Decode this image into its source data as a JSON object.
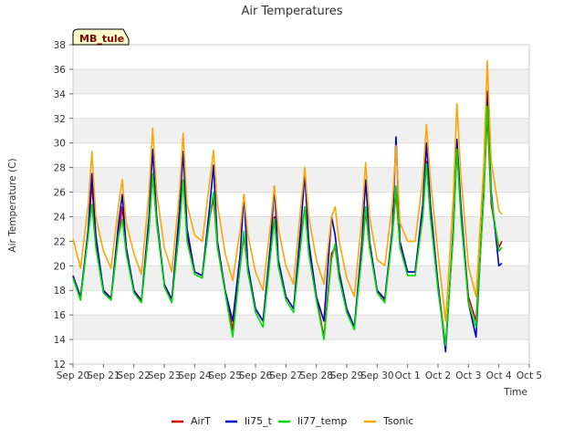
{
  "chart_data": {
    "type": "line",
    "title": "Air Temperatures",
    "xlabel": "Time",
    "ylabel": "Air Temperature (C)",
    "site_label": "MB_tule",
    "ylim": [
      12,
      38
    ],
    "yticks": [
      12,
      14,
      16,
      18,
      20,
      22,
      24,
      26,
      28,
      30,
      32,
      34,
      36,
      38
    ],
    "xlim": [
      "Sep 20",
      "Oct 5"
    ],
    "xtick_labels": [
      "Sep 20",
      "Sep 21",
      "Sep 22",
      "Sep 23",
      "Sep 24",
      "Sep 25",
      "Sep 26",
      "Sep 27",
      "Sep 28",
      "Sep 29",
      "Sep 30",
      "Oct 1",
      "Oct 2",
      "Oct 3",
      "Oct 4",
      "Oct 5"
    ],
    "grid": true,
    "legend_position": "bottom",
    "colors": {
      "AirT": "#cc0000",
      "li75_t": "#0000cc",
      "li77_temp": "#00dd00",
      "Tsonic": "#ffa500",
      "band": "#f0f0f0",
      "site_bg": "#ffffcc"
    },
    "series": [
      {
        "name": "AirT",
        "x": [
          "Sep 20",
          "Sep 20.25",
          "Sep 20.5",
          "Sep 20.62",
          "Sep 20.75",
          "Sep 21",
          "Sep 21.25",
          "Sep 21.5",
          "Sep 21.62",
          "Sep 21.75",
          "Sep 22",
          "Sep 22.25",
          "Sep 22.5",
          "Sep 22.62",
          "Sep 22.75",
          "Sep 23",
          "Sep 23.25",
          "Sep 23.5",
          "Sep 23.62",
          "Sep 23.75",
          "Sep 24",
          "Sep 24.25",
          "Sep 24.5",
          "Sep 24.62",
          "Sep 24.75",
          "Sep 25",
          "Sep 25.25",
          "Sep 25.5",
          "Sep 25.62",
          "Sep 25.75",
          "Sep 26",
          "Sep 26.25",
          "Sep 26.5",
          "Sep 26.62",
          "Sep 26.75",
          "Sep 27",
          "Sep 27.25",
          "Sep 27.5",
          "Sep 27.62",
          "Sep 27.75",
          "Sep 28",
          "Sep 28.25",
          "Sep 28.5",
          "Sep 28.62",
          "Sep 28.75",
          "Sep 29",
          "Sep 29.25",
          "Sep 29.5",
          "Sep 29.62",
          "Sep 29.75",
          "Sep 30",
          "Sep 30.25",
          "Sep 30.5",
          "Sep 30.62",
          "Sep 30.75",
          "Oct 1",
          "Oct 1.25",
          "Oct 1.5",
          "Oct 1.62",
          "Oct 1.75",
          "Oct 2",
          "Oct 2.25",
          "Oct 2.5",
          "Oct 2.62",
          "Oct 2.75",
          "Oct 3",
          "Oct 3.25",
          "Oct 3.5",
          "Oct 3.62",
          "Oct 3.75",
          "Oct 4",
          "Oct 4.1"
        ],
        "y": [
          19.2,
          17.5,
          22.5,
          26.8,
          22,
          18,
          17.4,
          22.5,
          24.8,
          21.5,
          18,
          17.2,
          23,
          27.5,
          23.5,
          18.5,
          17.3,
          23.5,
          27,
          22.5,
          19.5,
          19.2,
          24,
          25.5,
          21.5,
          18,
          14.8,
          20,
          22.5,
          19.5,
          16.5,
          15.5,
          21.5,
          24,
          20,
          17.5,
          16.5,
          22.5,
          24.8,
          21.5,
          17.5,
          14.2,
          21,
          21.5,
          19,
          16.5,
          15,
          21,
          24.5,
          21.5,
          18,
          17.2,
          22.5,
          26,
          21.5,
          19.5,
          19.5,
          24,
          28.5,
          24,
          18.5,
          13.5,
          22.5,
          29.5,
          24.5,
          17.5,
          15.5,
          25.5,
          32.5,
          25,
          21.5,
          22
        ]
      },
      {
        "name": "li75_t",
        "x": [
          "Sep 20",
          "Sep 20.25",
          "Sep 20.5",
          "Sep 20.62",
          "Sep 20.75",
          "Sep 21",
          "Sep 21.25",
          "Sep 21.5",
          "Sep 21.62",
          "Sep 21.75",
          "Sep 22",
          "Sep 22.25",
          "Sep 22.5",
          "Sep 22.62",
          "Sep 22.75",
          "Sep 23",
          "Sep 23.25",
          "Sep 23.5",
          "Sep 23.62",
          "Sep 23.75",
          "Sep 24",
          "Sep 24.25",
          "Sep 24.5",
          "Sep 24.62",
          "Sep 24.75",
          "Sep 25",
          "Sep 25.25",
          "Sep 25.5",
          "Sep 25.62",
          "Sep 25.75",
          "Sep 26",
          "Sep 26.25",
          "Sep 26.5",
          "Sep 26.62",
          "Sep 26.75",
          "Sep 27",
          "Sep 27.25",
          "Sep 27.5",
          "Sep 27.62",
          "Sep 27.75",
          "Sep 28",
          "Sep 28.25",
          "Sep 28.5",
          "Sep 28.62",
          "Sep 28.75",
          "Sep 29",
          "Sep 29.25",
          "Sep 29.5",
          "Sep 29.62",
          "Sep 29.75",
          "Sep 30",
          "Sep 30.25",
          "Sep 30.5",
          "Sep 30.62",
          "Sep 30.75",
          "Oct 1",
          "Oct 1.25",
          "Oct 1.5",
          "Oct 1.62",
          "Oct 1.75",
          "Oct 2",
          "Oct 2.25",
          "Oct 2.5",
          "Oct 2.62",
          "Oct 2.75",
          "Oct 3",
          "Oct 3.25",
          "Oct 3.5",
          "Oct 3.62",
          "Oct 3.75",
          "Oct 4",
          "Oct 4.1"
        ],
        "y": [
          19.2,
          17.4,
          23,
          27.5,
          22.5,
          18,
          17.3,
          23.5,
          25.8,
          21.5,
          18,
          17.1,
          24,
          29.5,
          24,
          18.5,
          17.2,
          24.5,
          29.3,
          23,
          19.5,
          19.2,
          25,
          28.2,
          22,
          18,
          15.5,
          21,
          25.8,
          20,
          16.5,
          15.5,
          22,
          26.5,
          20.5,
          17.5,
          16.5,
          23.5,
          27.5,
          22,
          17.5,
          15.5,
          24,
          22.5,
          19.5,
          16.5,
          15,
          22,
          27,
          22,
          18,
          17.3,
          23,
          30.5,
          22,
          19.5,
          19.5,
          25,
          30,
          25,
          18.5,
          13,
          23,
          30.3,
          25,
          17,
          14.2,
          26,
          34.2,
          26,
          20,
          20.2
        ]
      },
      {
        "name": "li77_temp",
        "x": [
          "Sep 20",
          "Sep 20.25",
          "Sep 20.5",
          "Sep 20.62",
          "Sep 20.75",
          "Sep 21",
          "Sep 21.25",
          "Sep 21.5",
          "Sep 21.62",
          "Sep 21.75",
          "Sep 22",
          "Sep 22.25",
          "Sep 22.5",
          "Sep 22.62",
          "Sep 22.75",
          "Sep 23",
          "Sep 23.25",
          "Sep 23.5",
          "Sep 23.62",
          "Sep 23.75",
          "Sep 24",
          "Sep 24.25",
          "Sep 24.5",
          "Sep 24.62",
          "Sep 24.75",
          "Sep 25",
          "Sep 25.25",
          "Sep 25.5",
          "Sep 25.62",
          "Sep 25.75",
          "Sep 26",
          "Sep 26.25",
          "Sep 26.5",
          "Sep 26.62",
          "Sep 26.75",
          "Sep 27",
          "Sep 27.25",
          "Sep 27.5",
          "Sep 27.62",
          "Sep 27.75",
          "Sep 28",
          "Sep 28.25",
          "Sep 28.5",
          "Sep 28.62",
          "Sep 28.75",
          "Sep 29",
          "Sep 29.25",
          "Sep 29.5",
          "Sep 29.62",
          "Sep 29.75",
          "Sep 30",
          "Sep 30.25",
          "Sep 30.5",
          "Sep 30.62",
          "Sep 30.75",
          "Oct 1",
          "Oct 1.25",
          "Oct 1.5",
          "Oct 1.62",
          "Oct 1.75",
          "Oct 2",
          "Oct 2.25",
          "Oct 2.5",
          "Oct 2.62",
          "Oct 2.75",
          "Oct 3",
          "Oct 3.25",
          "Oct 3.5",
          "Oct 3.62",
          "Oct 3.75",
          "Oct 4",
          "Oct 4.1"
        ],
        "y": [
          19,
          17.2,
          22.5,
          25,
          21.5,
          17.8,
          17.2,
          22.5,
          23.8,
          21,
          17.8,
          17,
          23,
          27.5,
          23.5,
          18.3,
          17,
          23,
          27,
          22,
          19.3,
          19,
          24,
          26,
          21.5,
          17.8,
          14.2,
          20,
          22.8,
          19.5,
          16.2,
          15,
          21,
          23.8,
          20,
          17.2,
          16.2,
          22,
          24.8,
          21,
          17.2,
          14,
          20.5,
          21.8,
          19,
          16.2,
          14.8,
          21,
          24.8,
          21.5,
          17.8,
          17,
          22.5,
          26.5,
          21.5,
          19.2,
          19.2,
          24,
          28.3,
          24,
          18,
          13.5,
          22.5,
          29.5,
          24,
          17,
          15,
          25.5,
          33,
          25.5,
          21.2,
          21.5
        ]
      },
      {
        "name": "Tsonic",
        "x": [
          "Sep 20",
          "Sep 20.25",
          "Sep 20.5",
          "Sep 20.62",
          "Sep 20.75",
          "Sep 21",
          "Sep 21.25",
          "Sep 21.5",
          "Sep 21.62",
          "Sep 21.75",
          "Sep 22",
          "Sep 22.25",
          "Sep 22.5",
          "Sep 22.62",
          "Sep 22.75",
          "Sep 23",
          "Sep 23.25",
          "Sep 23.5",
          "Sep 23.62",
          "Sep 23.75",
          "Sep 24",
          "Sep 24.25",
          "Sep 24.5",
          "Sep 24.62",
          "Sep 24.75",
          "Sep 25",
          "Sep 25.25",
          "Sep 25.5",
          "Sep 25.62",
          "Sep 25.75",
          "Sep 26",
          "Sep 26.25",
          "Sep 26.5",
          "Sep 26.62",
          "Sep 26.75",
          "Sep 27",
          "Sep 27.25",
          "Sep 27.5",
          "Sep 27.62",
          "Sep 27.75",
          "Sep 28",
          "Sep 28.25",
          "Sep 28.5",
          "Sep 28.62",
          "Sep 28.75",
          "Sep 29",
          "Sep 29.25",
          "Sep 29.5",
          "Sep 29.62",
          "Sep 29.75",
          "Sep 30",
          "Sep 30.25",
          "Sep 30.5",
          "Sep 30.62",
          "Sep 30.75",
          "Oct 1",
          "Oct 1.25",
          "Oct 1.5",
          "Oct 1.62",
          "Oct 1.75",
          "Oct 2",
          "Oct 2.25",
          "Oct 2.5",
          "Oct 2.62",
          "Oct 2.75",
          "Oct 3",
          "Oct 3.25",
          "Oct 3.5",
          "Oct 3.62",
          "Oct 3.75",
          "Oct 4",
          "Oct 4.1"
        ],
        "y": [
          22.2,
          19.8,
          25,
          29.3,
          24,
          21.2,
          19.8,
          25,
          27,
          23.5,
          21,
          19.3,
          26,
          31.2,
          26,
          21.5,
          19.5,
          26,
          30.8,
          25,
          22.5,
          22,
          27,
          29.4,
          25,
          21,
          18.8,
          23,
          25.8,
          22.5,
          19.5,
          18,
          23.5,
          26.5,
          23,
          20,
          18.5,
          25,
          28,
          24,
          20.5,
          18.5,
          24,
          24.8,
          22,
          19,
          17.5,
          24,
          28.4,
          24,
          20.5,
          20,
          25,
          29.8,
          23.5,
          22,
          22,
          27,
          31.5,
          27,
          21,
          15.5,
          25.5,
          33.2,
          27.5,
          20,
          17.5,
          28,
          36.7,
          28.5,
          24.5,
          24.2
        ]
      }
    ]
  }
}
